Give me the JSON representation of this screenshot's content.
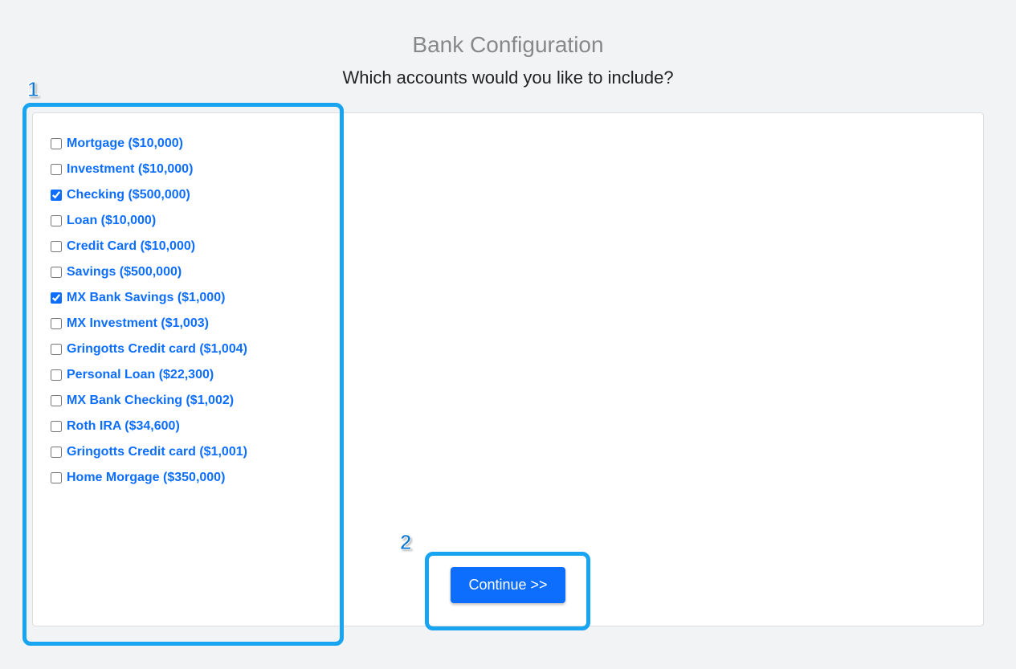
{
  "header": {
    "title": "Bank Configuration",
    "subtitle": "Which accounts would you like to include?"
  },
  "colors": {
    "page_background": "#f1f3f5",
    "panel_background": "#ffffff",
    "panel_border": "#dddddd",
    "title_color": "#888888",
    "subtitle_color": "#222222",
    "link_color": "#0d6efd",
    "button_bg": "#0d6efd",
    "button_text": "#ffffff",
    "callout_border": "#19a4f2",
    "callout_number_color": "#0d78d6"
  },
  "accounts": [
    {
      "label": "Mortgage ($10,000)",
      "checked": false
    },
    {
      "label": "Investment ($10,000)",
      "checked": false
    },
    {
      "label": "Checking ($500,000)",
      "checked": true
    },
    {
      "label": "Loan ($10,000)",
      "checked": false
    },
    {
      "label": "Credit Card ($10,000)",
      "checked": false
    },
    {
      "label": "Savings ($500,000)",
      "checked": false
    },
    {
      "label": "MX Bank Savings ($1,000)",
      "checked": true
    },
    {
      "label": "MX Investment ($1,003)",
      "checked": false
    },
    {
      "label": "Gringotts Credit card ($1,004)",
      "checked": false
    },
    {
      "label": "Personal Loan ($22,300)",
      "checked": false
    },
    {
      "label": "MX Bank Checking ($1,002)",
      "checked": false
    },
    {
      "label": "Roth IRA ($34,600)",
      "checked": false
    },
    {
      "label": "Gringotts Credit card ($1,001)",
      "checked": false
    },
    {
      "label": "Home Morgage ($350,000)",
      "checked": false
    }
  ],
  "buttons": {
    "continue_label": "Continue >>"
  },
  "callouts": {
    "one": "1",
    "two": "2"
  }
}
